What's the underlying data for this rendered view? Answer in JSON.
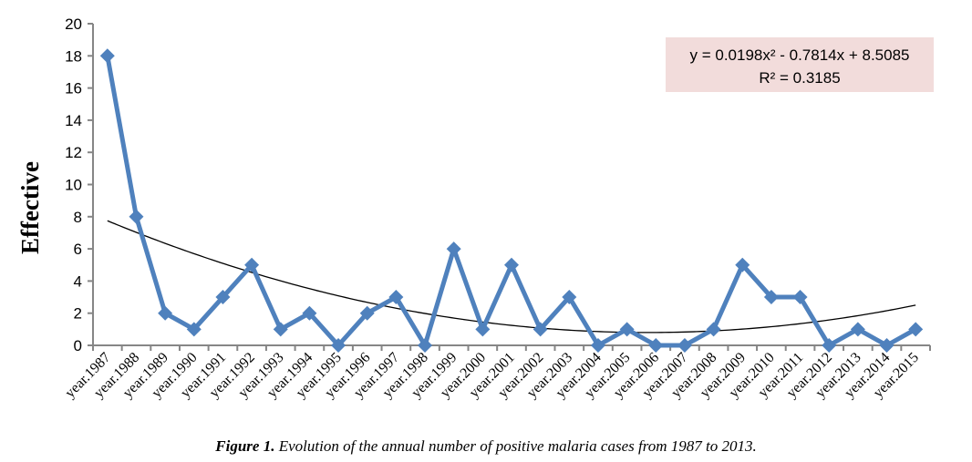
{
  "chart_data": {
    "type": "line",
    "title": "",
    "xlabel": "",
    "ylabel": "Effective",
    "ylim": [
      0,
      20
    ],
    "yticks": [
      0,
      2,
      4,
      6,
      8,
      10,
      12,
      14,
      16,
      18,
      20
    ],
    "grid": false,
    "categories": [
      "year.1987",
      "year.1988",
      "year.1989",
      "year.1990",
      "year.1991",
      "year.1992",
      "year.1993",
      "year.1994",
      "year.1995",
      "year.1996",
      "year.1997",
      "year.1998",
      "year.1999",
      "year.2000",
      "year.2001",
      "year.2002",
      "year.2003",
      "year.2004",
      "year.2005",
      "year.2006",
      "year.2007",
      "year.2008",
      "year.2009",
      "year.2010",
      "year.2011",
      "year.2012",
      "year.2013",
      "year.2014",
      "year.2015"
    ],
    "series": [
      {
        "name": "Effective",
        "color": "#4f81bd",
        "marker": "diamond",
        "values": [
          18,
          8,
          2,
          1,
          3,
          5,
          1,
          2,
          0,
          2,
          3,
          0,
          6,
          1,
          5,
          1,
          3,
          0,
          1,
          0,
          0,
          1,
          5,
          3,
          3,
          0,
          1,
          0,
          1
        ]
      }
    ],
    "trendline": {
      "type": "polynomial",
      "order": 2,
      "color": "#000000",
      "coefficients": {
        "a": 0.0198,
        "b": -0.7814,
        "c": 8.5085
      },
      "equation": "y = 0.0198x² - 0.7814x + 8.5085",
      "r_squared": "R² = 0.3185"
    },
    "annotation_box_color": "#f2dcdb",
    "axis_color": "#868686"
  },
  "caption": {
    "label": "Figure 1.",
    "text": " Evolution of the annual number of positive malaria cases from 1987 to 2013."
  }
}
